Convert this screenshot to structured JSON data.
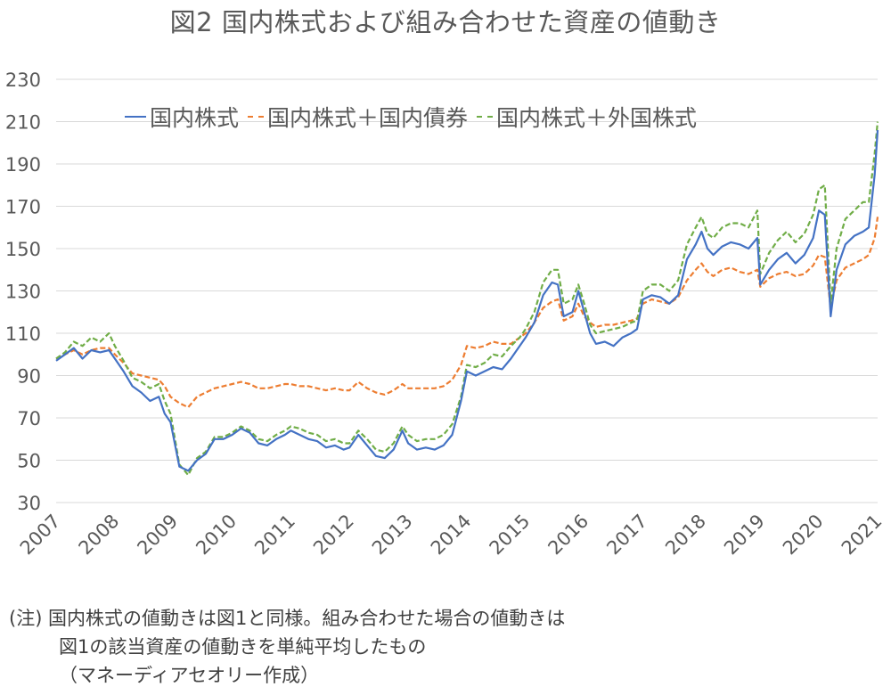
{
  "title": "図2 国内株式および組み合わせた資産の値動き",
  "legend": [
    {
      "label": "国内株式",
      "color": "#4472C4",
      "style": "solid"
    },
    {
      "label": "国内株式＋国内債券",
      "color": "#ED7D31",
      "style": "dashed"
    },
    {
      "label": "国内株式＋外国株式",
      "color": "#70AD47",
      "style": "dashed"
    }
  ],
  "notes": {
    "line1": "(注) 国内株式の値動きは図1と同様。組み合わせた場合の値動きは",
    "line2": "図1の該当資産の値動きを単純平均したもの",
    "line3": "（マネーディアセオリー作成）"
  },
  "chart_data": {
    "type": "line",
    "title": "図2 国内株式および組み合わせた資産の値動き",
    "xlabel": "",
    "ylabel": "",
    "ylim": [
      30,
      230
    ],
    "yticks": [
      30,
      50,
      70,
      90,
      110,
      130,
      150,
      170,
      190,
      210,
      230
    ],
    "xticks": [
      "2007",
      "2008",
      "2009",
      "2010",
      "2011",
      "2012",
      "2013",
      "2014",
      "2015",
      "2016",
      "2017",
      "2018",
      "2019",
      "2020",
      "2021"
    ],
    "xlim": [
      2007.0,
      2021.0
    ],
    "grid": "horizontal",
    "legend_position": "top-inside",
    "x": [
      2007.0,
      2007.15,
      2007.3,
      2007.45,
      2007.6,
      2007.75,
      2007.9,
      2008.0,
      2008.15,
      2008.3,
      2008.45,
      2008.6,
      2008.75,
      2008.85,
      2008.95,
      2009.1,
      2009.25,
      2009.4,
      2009.55,
      2009.7,
      2009.85,
      2010.0,
      2010.15,
      2010.3,
      2010.45,
      2010.6,
      2010.75,
      2010.9,
      2011.0,
      2011.15,
      2011.3,
      2011.45,
      2011.6,
      2011.75,
      2011.9,
      2012.0,
      2012.15,
      2012.3,
      2012.45,
      2012.6,
      2012.75,
      2012.9,
      2013.0,
      2013.15,
      2013.3,
      2013.45,
      2013.6,
      2013.75,
      2013.9,
      2014.0,
      2014.15,
      2014.3,
      2014.45,
      2014.6,
      2014.75,
      2014.9,
      2015.0,
      2015.15,
      2015.3,
      2015.45,
      2015.55,
      2015.65,
      2015.8,
      2015.9,
      2016.0,
      2016.1,
      2016.2,
      2016.35,
      2016.5,
      2016.65,
      2016.8,
      2016.9,
      2017.0,
      2017.15,
      2017.3,
      2017.45,
      2017.6,
      2017.75,
      2017.9,
      2018.0,
      2018.1,
      2018.2,
      2018.35,
      2018.5,
      2018.65,
      2018.8,
      2018.95,
      2019.0,
      2019.15,
      2019.3,
      2019.45,
      2019.6,
      2019.75,
      2019.9,
      2020.0,
      2020.1,
      2020.2,
      2020.3,
      2020.45,
      2020.6,
      2020.75,
      2020.85,
      2020.95,
      2021.0
    ],
    "series": [
      {
        "name": "国内株式",
        "values": [
          97,
          100,
          103,
          98,
          102,
          101,
          102,
          98,
          92,
          85,
          82,
          78,
          80,
          72,
          68,
          47,
          45,
          50,
          53,
          60,
          60,
          62,
          65,
          63,
          58,
          57,
          60,
          62,
          64,
          62,
          60,
          59,
          56,
          57,
          55,
          56,
          62,
          57,
          52,
          51,
          55,
          64,
          58,
          55,
          56,
          55,
          57,
          62,
          78,
          92,
          90,
          92,
          94,
          93,
          98,
          104,
          108,
          115,
          128,
          134,
          133,
          118,
          120,
          130,
          120,
          110,
          105,
          106,
          104,
          108,
          110,
          112,
          126,
          128,
          127,
          124,
          128,
          145,
          152,
          158,
          150,
          147,
          151,
          153,
          152,
          150,
          155,
          133,
          140,
          145,
          148,
          143,
          147,
          155,
          168,
          166,
          118,
          140,
          152,
          156,
          158,
          160,
          185,
          206
        ]
      },
      {
        "name": "国内株式＋国内債券",
        "values": [
          98,
          100,
          102,
          100,
          102,
          103,
          103,
          100,
          96,
          91,
          90,
          89,
          88,
          85,
          80,
          77,
          75,
          80,
          82,
          84,
          85,
          86,
          87,
          86,
          84,
          84,
          85,
          86,
          86,
          85,
          85,
          84,
          83,
          84,
          83,
          83,
          87,
          84,
          82,
          81,
          83,
          86,
          84,
          84,
          84,
          84,
          85,
          88,
          95,
          104,
          103,
          104,
          106,
          105,
          105,
          108,
          110,
          115,
          122,
          125,
          126,
          116,
          118,
          124,
          118,
          115,
          113,
          114,
          114,
          115,
          116,
          117,
          124,
          126,
          125,
          124,
          127,
          135,
          140,
          143,
          139,
          137,
          140,
          141,
          139,
          138,
          140,
          132,
          136,
          138,
          139,
          137,
          138,
          142,
          147,
          146,
          122,
          135,
          141,
          143,
          145,
          147,
          155,
          165
        ]
      },
      {
        "name": "国内株式＋外国株式",
        "values": [
          98,
          101,
          106,
          104,
          108,
          106,
          110,
          104,
          97,
          89,
          87,
          84,
          86,
          78,
          72,
          48,
          43,
          51,
          54,
          61,
          61,
          63,
          66,
          64,
          60,
          59,
          62,
          64,
          66,
          65,
          63,
          62,
          59,
          60,
          58,
          58,
          64,
          60,
          55,
          54,
          58,
          66,
          62,
          59,
          60,
          60,
          62,
          67,
          80,
          95,
          94,
          96,
          100,
          99,
          104,
          108,
          112,
          120,
          134,
          140,
          140,
          124,
          126,
          133,
          124,
          114,
          110,
          111,
          112,
          113,
          115,
          116,
          130,
          133,
          133,
          130,
          135,
          152,
          160,
          165,
          157,
          155,
          160,
          162,
          162,
          160,
          168,
          138,
          148,
          154,
          158,
          153,
          157,
          166,
          178,
          180,
          124,
          150,
          164,
          168,
          172,
          172,
          195,
          210
        ]
      }
    ]
  }
}
